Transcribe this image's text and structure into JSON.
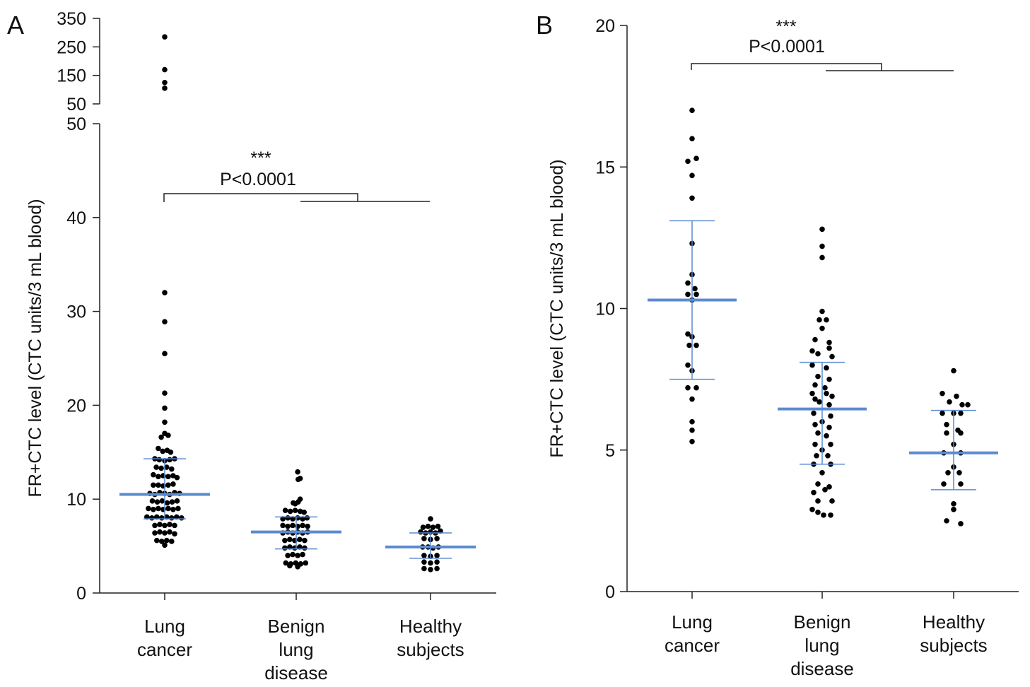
{
  "chart_data": [
    {
      "type": "scatter",
      "panel_label": "A",
      "ylabel": "FR+CTC level (CTC units/3 mL blood)",
      "categories": [
        {
          "lines": [
            "Lung",
            "cancer"
          ]
        },
        {
          "lines": [
            "Benign",
            "lung",
            "disease"
          ]
        },
        {
          "lines": [
            "Healthy",
            "subjects"
          ]
        }
      ],
      "ylim": [
        0,
        50
      ],
      "yticks": [
        0,
        10,
        20,
        30,
        40,
        50
      ],
      "y_break": {
        "ylim": [
          50,
          350
        ],
        "yticks": [
          50,
          150,
          250,
          350
        ]
      },
      "significance": {
        "stars": "***",
        "label": "P<0.0001"
      },
      "series": [
        {
          "points": [
            [
              0,
              285
            ],
            [
              0,
              170
            ],
            [
              0,
              105
            ],
            [
              0,
              125
            ],
            [
              0,
              32
            ],
            [
              0,
              28.9
            ],
            [
              0,
              25.5
            ],
            [
              0,
              21.3
            ],
            [
              0,
              19.7
            ],
            [
              0,
              18.2
            ],
            [
              0,
              17.0
            ],
            [
              -0.7,
              16.6
            ],
            [
              0.7,
              16.8
            ],
            [
              -1.3,
              15.4
            ],
            [
              -0.4,
              15.1
            ],
            [
              0.5,
              15.2
            ],
            [
              1.2,
              15.0
            ],
            [
              -2,
              14.3
            ],
            [
              -1.1,
              14.2
            ],
            [
              0,
              14.1
            ],
            [
              1.0,
              14.2
            ],
            [
              2,
              14.3
            ],
            [
              -1.7,
              13.4
            ],
            [
              -0.7,
              13.3
            ],
            [
              0.4,
              13.4
            ],
            [
              1.4,
              13.2
            ],
            [
              -2.3,
              12.6
            ],
            [
              -1.3,
              12.4
            ],
            [
              -0.3,
              12.5
            ],
            [
              0.7,
              12.4
            ],
            [
              1.7,
              12.5
            ],
            [
              2.5,
              12.3
            ],
            [
              -2.3,
              11.5
            ],
            [
              -1.3,
              11.5
            ],
            [
              -0.3,
              11.4
            ],
            [
              0.7,
              11.5
            ],
            [
              1.7,
              11.6
            ],
            [
              -3,
              10.6
            ],
            [
              -2,
              10.5
            ],
            [
              -1,
              10.7
            ],
            [
              0,
              10.6
            ],
            [
              1,
              10.5
            ],
            [
              2,
              10.7
            ],
            [
              3,
              10.6
            ],
            [
              -2.5,
              9.8
            ],
            [
              -1.5,
              9.7
            ],
            [
              -0.5,
              9.8
            ],
            [
              0.5,
              9.6
            ],
            [
              1.5,
              9.7
            ],
            [
              2.5,
              9.8
            ],
            [
              -3.3,
              9.0
            ],
            [
              -2.3,
              8.9
            ],
            [
              -1.3,
              9.0
            ],
            [
              -0.3,
              8.9
            ],
            [
              0.7,
              9.0
            ],
            [
              1.7,
              8.9
            ],
            [
              2.7,
              9.0
            ],
            [
              -3.6,
              8.1
            ],
            [
              -2.6,
              8.0
            ],
            [
              -1.6,
              8.1
            ],
            [
              -0.6,
              8.0
            ],
            [
              0.4,
              8.1
            ],
            [
              1.4,
              8.0
            ],
            [
              2.4,
              8.1
            ],
            [
              3.4,
              8.0
            ],
            [
              -2,
              7.2
            ],
            [
              -1,
              7.3
            ],
            [
              0,
              7.2
            ],
            [
              1,
              7.3
            ],
            [
              2,
              7.2
            ],
            [
              -2,
              6.4
            ],
            [
              -1,
              6.5
            ],
            [
              0,
              6.4
            ],
            [
              1,
              6.5
            ],
            [
              2,
              6.3
            ],
            [
              -1.6,
              5.6
            ],
            [
              -0.6,
              5.5
            ],
            [
              0.4,
              5.6
            ],
            [
              1.4,
              5.5
            ],
            [
              0,
              5.1
            ]
          ]
        },
        {
          "points": [
            [
              0.3,
              12.9
            ],
            [
              0.8,
              12.2
            ],
            [
              0.4,
              12.1
            ],
            [
              -0.6,
              9.6
            ],
            [
              0.4,
              9.7
            ],
            [
              0.8,
              10.0
            ],
            [
              -0.2,
              9.5
            ],
            [
              -2.2,
              8.8
            ],
            [
              -1.2,
              8.7
            ],
            [
              -0.2,
              8.8
            ],
            [
              0.8,
              8.7
            ],
            [
              1.6,
              8.6
            ],
            [
              -2.7,
              7.9
            ],
            [
              -1.7,
              8.0
            ],
            [
              -0.7,
              7.9
            ],
            [
              0.3,
              8.0
            ],
            [
              1.3,
              7.9
            ],
            [
              2.2,
              8.0
            ],
            [
              -2.7,
              7.2
            ],
            [
              -1.7,
              7.1
            ],
            [
              -0.7,
              7.2
            ],
            [
              0.3,
              7.1
            ],
            [
              1.3,
              7.2
            ],
            [
              2.3,
              7.1
            ],
            [
              -2.7,
              6.4
            ],
            [
              -1.7,
              6.5
            ],
            [
              -0.7,
              6.4
            ],
            [
              0.3,
              6.5
            ],
            [
              1.3,
              6.4
            ],
            [
              2.3,
              6.5
            ],
            [
              -2.3,
              5.6
            ],
            [
              -1.3,
              5.7
            ],
            [
              -0.3,
              5.6
            ],
            [
              0.7,
              5.7
            ],
            [
              1.7,
              5.6
            ],
            [
              -2.3,
              4.8
            ],
            [
              -1.3,
              4.9
            ],
            [
              -0.3,
              4.8
            ],
            [
              0.7,
              4.9
            ],
            [
              1.7,
              4.8
            ],
            [
              -1.7,
              4.0
            ],
            [
              -0.7,
              4.1
            ],
            [
              0.3,
              4.0
            ],
            [
              1.3,
              4.1
            ],
            [
              -2.1,
              3.2
            ],
            [
              -1.1,
              3.1
            ],
            [
              -0.1,
              3.2
            ],
            [
              0.9,
              3.1
            ],
            [
              1.9,
              3.2
            ],
            [
              -1.3,
              2.9
            ],
            [
              0.3,
              2.8
            ]
          ]
        },
        {
          "points": [
            [
              0,
              7.9
            ],
            [
              -1.5,
              7.0
            ],
            [
              -0.5,
              7.1
            ],
            [
              0.5,
              7.0
            ],
            [
              1.5,
              7.1
            ],
            [
              -2,
              6.5
            ],
            [
              -1,
              6.4
            ],
            [
              0,
              6.5
            ],
            [
              1,
              6.4
            ],
            [
              2,
              6.6
            ],
            [
              -1.3,
              5.8
            ],
            [
              0,
              5.7
            ],
            [
              1.3,
              5.8
            ],
            [
              -1.6,
              4.9
            ],
            [
              -0.5,
              4.9
            ],
            [
              0.5,
              4.8
            ],
            [
              1.6,
              4.9
            ],
            [
              -1.3,
              4.0
            ],
            [
              0,
              3.9
            ],
            [
              1.3,
              4.0
            ],
            [
              -1.3,
              3.3
            ],
            [
              0,
              3.2
            ],
            [
              1.3,
              3.3
            ],
            [
              -1.3,
              2.6
            ],
            [
              0,
              2.5
            ],
            [
              1.3,
              2.6
            ]
          ]
        }
      ],
      "summary": [
        {
          "mean": 10.5,
          "sd_low": 7.9,
          "sd_high": 14.3
        },
        {
          "mean": 6.5,
          "sd_low": 4.7,
          "sd_high": 8.1
        },
        {
          "mean": 4.9,
          "sd_low": 3.7,
          "sd_high": 6.4
        }
      ],
      "summary_color": "#5b8bd0",
      "point_color": "#000000"
    },
    {
      "type": "scatter",
      "panel_label": "B",
      "ylabel": "FR+CTC level (CTC units/3 mL blood)",
      "categories": [
        {
          "lines": [
            "Lung",
            "cancer"
          ]
        },
        {
          "lines": [
            "Benign",
            "lung",
            "disease"
          ]
        },
        {
          "lines": [
            "Healthy",
            "subjects"
          ]
        }
      ],
      "ylim": [
        0,
        20
      ],
      "yticks": [
        0,
        5,
        10,
        15,
        20
      ],
      "significance": {
        "stars": "***",
        "label": "P<0.0001"
      },
      "series": [
        {
          "points": [
            [
              0,
              17.0
            ],
            [
              0,
              16.0
            ],
            [
              -0.3,
              15.2
            ],
            [
              0.3,
              15.3
            ],
            [
              0,
              14.7
            ],
            [
              0,
              13.9
            ],
            [
              0,
              12.3
            ],
            [
              0,
              11.2
            ],
            [
              -0.3,
              10.9
            ],
            [
              0.2,
              10.7
            ],
            [
              -0.3,
              10.5
            ],
            [
              0.3,
              10.5
            ],
            [
              0,
              10.3
            ],
            [
              -0.3,
              9.1
            ],
            [
              0,
              9.0
            ],
            [
              -0.2,
              8.7
            ],
            [
              0.3,
              8.7
            ],
            [
              -0.3,
              8.0
            ],
            [
              0,
              7.8
            ],
            [
              -0.3,
              7.2
            ],
            [
              0.3,
              7.2
            ],
            [
              0,
              6.8
            ],
            [
              0,
              6.0
            ],
            [
              0,
              5.7
            ],
            [
              0,
              5.3
            ]
          ]
        },
        {
          "points": [
            [
              0,
              12.8
            ],
            [
              0,
              12.2
            ],
            [
              0,
              11.8
            ],
            [
              0,
              9.9
            ],
            [
              -0.2,
              9.6
            ],
            [
              0.3,
              9.6
            ],
            [
              0,
              9.3
            ],
            [
              -0.5,
              8.9
            ],
            [
              0.5,
              8.8
            ],
            [
              -0.7,
              8.5
            ],
            [
              0.5,
              8.6
            ],
            [
              -0.3,
              8.4
            ],
            [
              0.7,
              8.3
            ],
            [
              -0.7,
              8.0
            ],
            [
              0.3,
              7.9
            ],
            [
              -0.3,
              7.6
            ],
            [
              0.5,
              7.5
            ],
            [
              -0.5,
              7.3
            ],
            [
              0.2,
              7.2
            ],
            [
              -0.7,
              7.0
            ],
            [
              0.3,
              7.0
            ],
            [
              0.7,
              6.9
            ],
            [
              -0.5,
              6.8
            ],
            [
              0.5,
              6.6
            ],
            [
              -0.2,
              6.7
            ],
            [
              -0.6,
              6.3
            ],
            [
              0.6,
              6.2
            ],
            [
              0,
              6.0
            ],
            [
              -0.5,
              5.9
            ],
            [
              0.5,
              5.8
            ],
            [
              -0.3,
              5.6
            ],
            [
              0.3,
              5.5
            ],
            [
              -0.5,
              5.2
            ],
            [
              0.6,
              5.2
            ],
            [
              0,
              5.0
            ],
            [
              -0.4,
              4.8
            ],
            [
              0.4,
              4.8
            ],
            [
              -0.6,
              4.5
            ],
            [
              0.6,
              4.5
            ],
            [
              0,
              4.2
            ],
            [
              -0.3,
              3.8
            ],
            [
              0.5,
              3.7
            ],
            [
              -0.6,
              3.5
            ],
            [
              0.2,
              3.6
            ],
            [
              -0.3,
              3.2
            ],
            [
              0.7,
              3.2
            ],
            [
              -0.7,
              2.9
            ],
            [
              -0.3,
              2.8
            ],
            [
              0.1,
              2.7
            ],
            [
              0.6,
              2.7
            ]
          ]
        },
        {
          "points": [
            [
              0,
              7.8
            ],
            [
              -0.8,
              7.0
            ],
            [
              0.2,
              6.9
            ],
            [
              -0.3,
              6.7
            ],
            [
              0.6,
              6.6
            ],
            [
              1.0,
              6.6
            ],
            [
              -0.8,
              6.3
            ],
            [
              0,
              6.3
            ],
            [
              0.5,
              6.3
            ],
            [
              -0.5,
              5.9
            ],
            [
              0.3,
              5.7
            ],
            [
              -0.5,
              5.6
            ],
            [
              0.5,
              5.6
            ],
            [
              0,
              5.2
            ],
            [
              -0.7,
              4.9
            ],
            [
              0.5,
              4.9
            ],
            [
              0,
              4.4
            ],
            [
              -0.4,
              4.2
            ],
            [
              0.4,
              4.2
            ],
            [
              -0.7,
              3.8
            ],
            [
              0.5,
              3.8
            ],
            [
              0,
              3.1
            ],
            [
              0,
              2.9
            ],
            [
              -0.5,
              2.5
            ],
            [
              0.5,
              2.4
            ]
          ]
        }
      ],
      "summary": [
        {
          "mean": 10.3,
          "sd_low": 7.5,
          "sd_high": 13.1
        },
        {
          "mean": 6.45,
          "sd_low": 4.5,
          "sd_high": 8.1
        },
        {
          "mean": 4.9,
          "sd_low": 3.6,
          "sd_high": 6.4
        }
      ],
      "summary_color": "#5b8bd0",
      "point_color": "#000000"
    }
  ]
}
